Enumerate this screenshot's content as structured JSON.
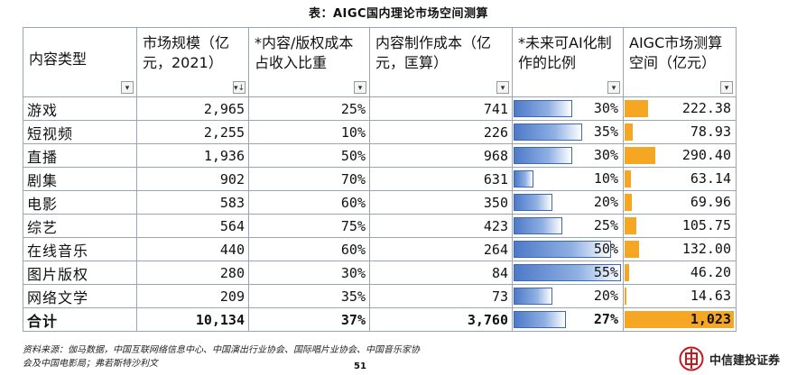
{
  "title": "表：AIGC国内理论市场空间测算",
  "headers": [
    {
      "text": "内容类型",
      "filter": "▾"
    },
    {
      "text": "市场规模（亿元，2021）",
      "filter": "▾↓"
    },
    {
      "text": "*内容/版权成本占收入比重",
      "filter": "▾"
    },
    {
      "text": "内容制作成本（亿元，匡算）",
      "filter": "▾"
    },
    {
      "text": "*未来可AI化制作的比例",
      "filter": "▾"
    },
    {
      "text": "AIGC市场测算空间（亿元）",
      "filter": "▾"
    }
  ],
  "rows": [
    {
      "type": "游戏",
      "market": "2,965",
      "ratio": "25%",
      "cost": "741",
      "ai": "30%",
      "ai_pct": 30,
      "aigc": "222.38",
      "aigc_val": 222.38
    },
    {
      "type": "短视频",
      "market": "2,255",
      "ratio": "10%",
      "cost": "226",
      "ai": "35%",
      "ai_pct": 35,
      "aigc": "78.93",
      "aigc_val": 78.93
    },
    {
      "type": "直播",
      "market": "1,936",
      "ratio": "50%",
      "cost": "968",
      "ai": "30%",
      "ai_pct": 30,
      "aigc": "290.40",
      "aigc_val": 290.4
    },
    {
      "type": "剧集",
      "market": "902",
      "ratio": "70%",
      "cost": "631",
      "ai": "10%",
      "ai_pct": 10,
      "aigc": "63.14",
      "aigc_val": 63.14
    },
    {
      "type": "电影",
      "market": "583",
      "ratio": "60%",
      "cost": "350",
      "ai": "20%",
      "ai_pct": 20,
      "aigc": "69.96",
      "aigc_val": 69.96
    },
    {
      "type": "综艺",
      "market": "564",
      "ratio": "75%",
      "cost": "423",
      "ai": "25%",
      "ai_pct": 25,
      "aigc": "105.75",
      "aigc_val": 105.75
    },
    {
      "type": "在线音乐",
      "market": "440",
      "ratio": "60%",
      "cost": "264",
      "ai": "50%",
      "ai_pct": 50,
      "aigc": "132.00",
      "aigc_val": 132.0
    },
    {
      "type": "图片版权",
      "market": "280",
      "ratio": "30%",
      "cost": "84",
      "ai": "55%",
      "ai_pct": 55,
      "aigc": "46.20",
      "aigc_val": 46.2
    },
    {
      "type": "网络文学",
      "market": "209",
      "ratio": "35%",
      "cost": "73",
      "ai": "20%",
      "ai_pct": 20,
      "aigc": "14.63",
      "aigc_val": 14.63
    }
  ],
  "total": {
    "type": "合计",
    "market": "10,134",
    "ratio": "37%",
    "cost": "3,760",
    "ai": "27%",
    "ai_pct": 27,
    "aigc": "1,023",
    "aigc_val": 1023
  },
  "footer": {
    "source_line1": "资料来源：伽马数据，中国互联网络信息中心、中国演出行业协会、国际唱片业协会、中国音乐家协",
    "source_line2": "会及中国电影局；弗若斯特沙利文",
    "page_number": "51"
  },
  "logo": {
    "name": "中信建投证券",
    "color": "#c8161d"
  },
  "colors": {
    "blue_bar": "#4d79c7",
    "orange_bar": "#f5a623",
    "grid": "#9aa4b5"
  }
}
